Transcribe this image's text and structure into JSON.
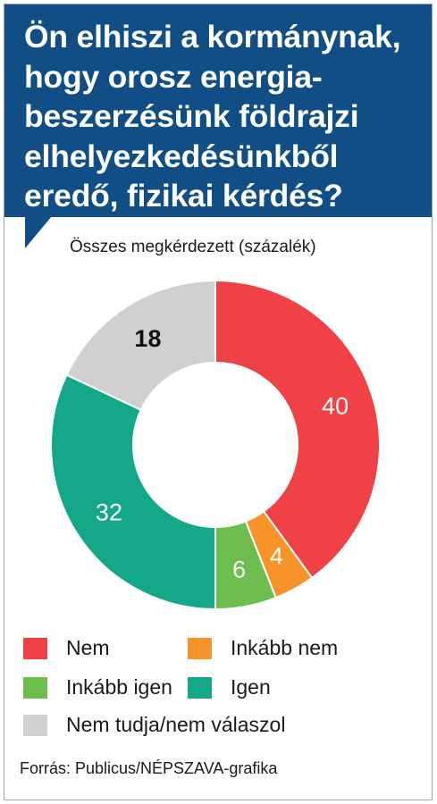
{
  "header": {
    "title_lines": [
      "Ön elhiszi a kormánynak,",
      "hogy orosz energia-",
      "beszerzésünk földrajzi",
      "elhelyezkedésünkből",
      "eredő, fizikai kérdés?"
    ],
    "color": "#114e86"
  },
  "chart_data": {
    "type": "pie",
    "subtitle": "Összes megkérdezett (százalék)",
    "categories": [
      "Nem",
      "Inkább nem",
      "Inkább igen",
      "Igen",
      "Nem tudja/nem válaszol"
    ],
    "values": [
      40,
      4,
      6,
      32,
      18
    ],
    "colors": [
      "#ef4146",
      "#f7932b",
      "#70bd4f",
      "#14a889",
      "#d0d0d0"
    ],
    "label_colors": [
      "#ffffff",
      "#ffffff",
      "#ffffff",
      "#ffffff",
      "#111111"
    ],
    "donut": true
  },
  "legend": {
    "items": [
      {
        "label": "Nem",
        "color": "#ef4146"
      },
      {
        "label": "Inkább nem",
        "color": "#f7932b"
      },
      {
        "label": "Inkább igen",
        "color": "#70bd4f"
      },
      {
        "label": "Igen",
        "color": "#14a889"
      },
      {
        "label": "Nem tudja/nem válaszol",
        "color": "#d0d0d0"
      }
    ]
  },
  "source": "Forrás: Publicus/NÉPSZAVA-grafika"
}
